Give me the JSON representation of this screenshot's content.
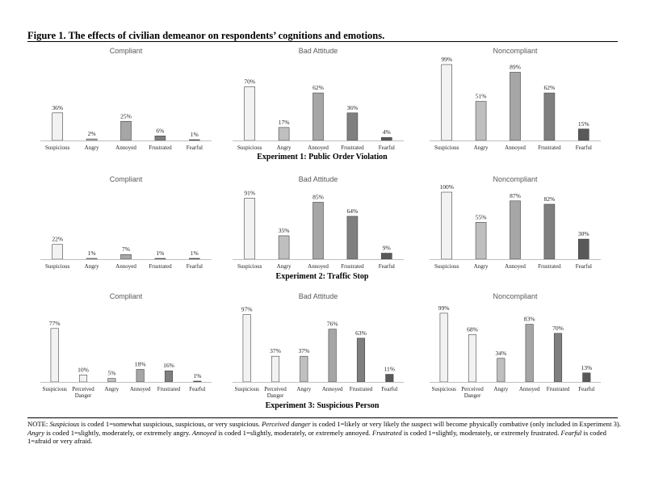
{
  "figure_title": "Figure 1. The effects of civilian demeanor on respondents’ cognitions and emotions.",
  "colors": {
    "Suspicious": "#f2f2f2",
    "Perceived Danger": "#f2f2f2",
    "Angry": "#bfbfbf",
    "Annoyed": "#a6a6a6",
    "Frustrated": "#7f7f7f",
    "Fearful": "#595959"
  },
  "chart_data": [
    {
      "experiment": "Experiment 1: Public Order Violation",
      "type": "bar",
      "ylim": [
        0,
        100
      ],
      "categories": [
        "Suspicious",
        "Angry",
        "Annoyed",
        "Frustrated",
        "Fearful"
      ],
      "panels": [
        {
          "title": "Compliant",
          "values": [
            36,
            2,
            25,
            6,
            1
          ]
        },
        {
          "title": "Bad Attitude",
          "values": [
            70,
            17,
            62,
            36,
            4
          ]
        },
        {
          "title": "Noncompliant",
          "values": [
            99,
            51,
            89,
            62,
            15
          ]
        }
      ]
    },
    {
      "experiment": "Experiment 2: Traffic Stop",
      "type": "bar",
      "ylim": [
        0,
        100
      ],
      "categories": [
        "Suspicious",
        "Angry",
        "Annoyed",
        "Frustrated",
        "Fearful"
      ],
      "panels": [
        {
          "title": "Compliant",
          "values": [
            22,
            1,
            7,
            1,
            1
          ]
        },
        {
          "title": "Bad Attitude",
          "values": [
            91,
            35,
            85,
            64,
            9
          ]
        },
        {
          "title": "Noncompliant",
          "values": [
            100,
            55,
            87,
            82,
            30
          ]
        }
      ]
    },
    {
      "experiment": "Experiment 3: Suspicious Person",
      "type": "bar",
      "ylim": [
        0,
        100
      ],
      "categories": [
        "Suspicious",
        "Perceived Danger",
        "Angry",
        "Annoyed",
        "Frustrated",
        "Fearful"
      ],
      "panels": [
        {
          "title": "Compliant",
          "values": [
            77,
            10,
            5,
            18,
            16,
            1
          ]
        },
        {
          "title": "Bad Attitude",
          "values": [
            97,
            37,
            37,
            76,
            63,
            11
          ]
        },
        {
          "title": "Noncompliant",
          "values": [
            99,
            68,
            34,
            83,
            70,
            13
          ]
        }
      ]
    }
  ],
  "note": {
    "prefix": "NOTE: ",
    "t1": "Suspicious",
    "d1": " is coded 1=somewhat suspicious, suspicious, or very suspicious.  ",
    "t2": "Perceived danger",
    "d2": " is coded 1=likely or very likely the suspect will become physically combative (only included in Experiment 3).  ",
    "t3": "Angry",
    "d3": " is coded 1=slightly, moderately, or extremely angry.  ",
    "t4": "Annoyed",
    "d4": " is coded 1=slightly, moderately, or extremely annoyed.  ",
    "t5": "Frustrated",
    "d5": " is coded 1=slightly, moderately, or extremely frustrated.  ",
    "t6": "Fearful",
    "d6": " is coded 1=afraid or very afraid."
  }
}
